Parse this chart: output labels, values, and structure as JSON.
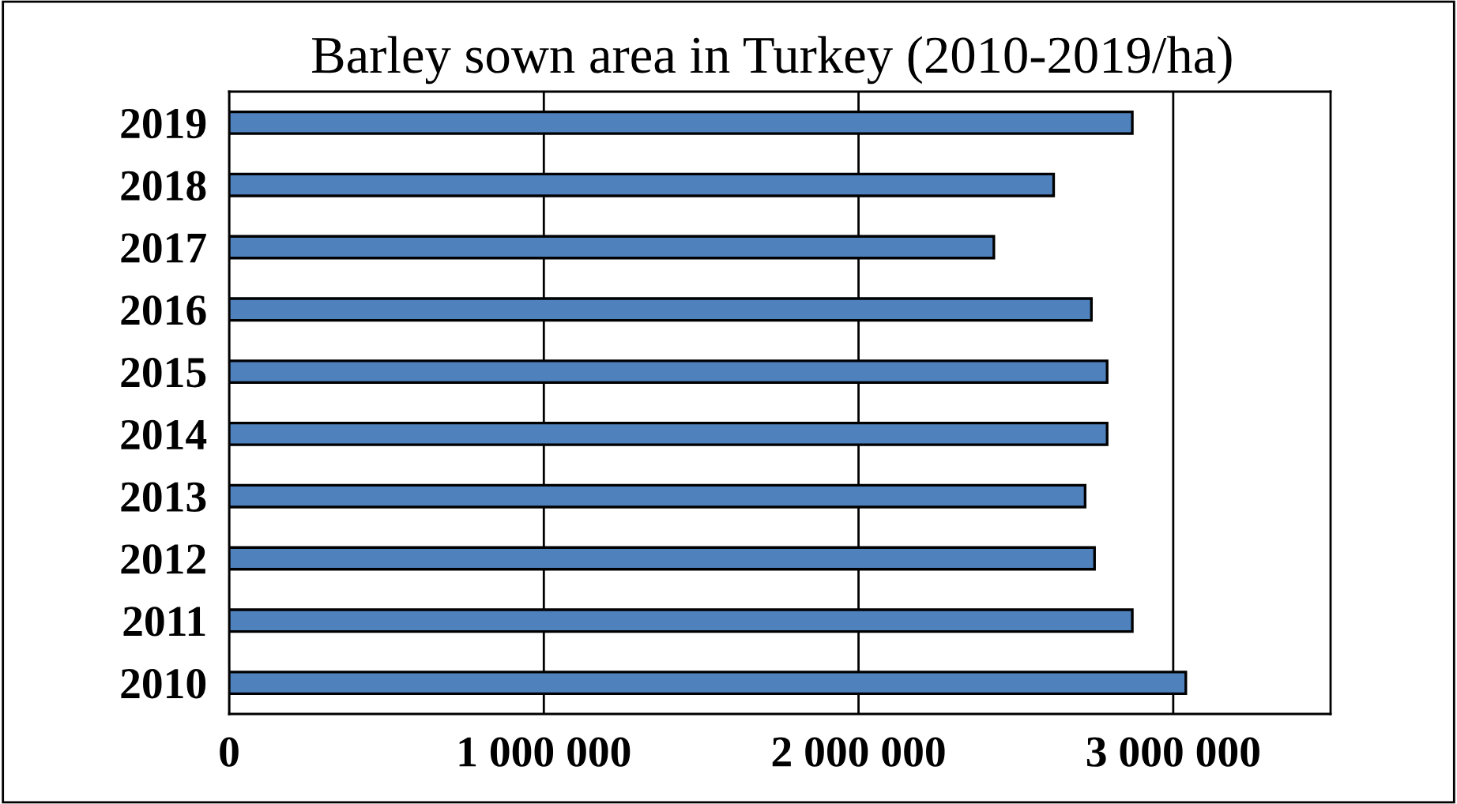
{
  "chart_data": {
    "type": "bar",
    "orientation": "horizontal",
    "title": "Barley sown area in Turkey (2010-2019/ha)",
    "categories": [
      "2019",
      "2018",
      "2017",
      "2016",
      "2015",
      "2014",
      "2013",
      "2012",
      "2011",
      "2010"
    ],
    "values": [
      2870000,
      2620000,
      2430000,
      2740000,
      2790000,
      2790000,
      2720000,
      2750000,
      2870000,
      3040000
    ],
    "color": "#4f81bd",
    "xlim": [
      0,
      3500000
    ],
    "xticks": [
      {
        "value": 0,
        "label": "0"
      },
      {
        "value": 1000000,
        "label": "1 000 000"
      },
      {
        "value": 2000000,
        "label": "2 000 000"
      },
      {
        "value": 3000000,
        "label": "3 000 000"
      }
    ],
    "grid": "x",
    "legend": false
  }
}
